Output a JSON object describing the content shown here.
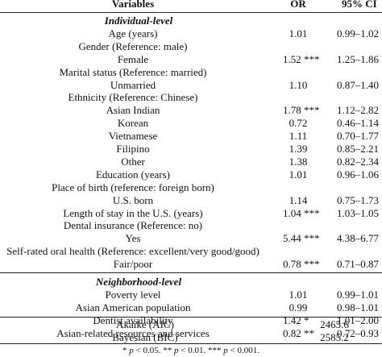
{
  "header": {
    "variables": "Variables",
    "or": "OR",
    "ci": "95% CI"
  },
  "sections": [
    {
      "title": "Individual-level",
      "rows": [
        {
          "label": "Age (years)",
          "or": "1.01",
          "ci": "0.99–1.02"
        },
        {
          "label": "Gender (Reference: male)",
          "or": "",
          "ci": ""
        },
        {
          "label": "Female",
          "or": "1.52 ***",
          "ci": "1.25–1.86"
        },
        {
          "label": "Marital status (Reference: married)",
          "or": "",
          "ci": ""
        },
        {
          "label": "Unmarried",
          "or": "1.10",
          "ci": "0.87–1.40"
        },
        {
          "label": "Ethnicity (Reference: Chinese)",
          "or": "",
          "ci": ""
        },
        {
          "label": "Asian Indian",
          "or": "1.78 ***",
          "ci": "1.12–2.82"
        },
        {
          "label": "Korean",
          "or": "0.72",
          "ci": "0.46–1.14"
        },
        {
          "label": "Vietnamese",
          "or": "1.11",
          "ci": "0.70–1.77"
        },
        {
          "label": "Filipino",
          "or": "1.39",
          "ci": "0.85–2.21"
        },
        {
          "label": "Other",
          "or": "1.38",
          "ci": "0.82–2.34"
        },
        {
          "label": "Education (years)",
          "or": "1.01",
          "ci": "0.96–1.06"
        },
        {
          "label": "Place of birth (reference: foreign born)",
          "or": "",
          "ci": ""
        },
        {
          "label": "U.S. born",
          "or": "1.14",
          "ci": "0.75–1.73"
        },
        {
          "label": "Length of stay in the U.S. (years)",
          "or": "1.04 ***",
          "ci": "1.03–1.05"
        },
        {
          "label": "Dental insurance (Reference: no)",
          "or": "",
          "ci": ""
        },
        {
          "label": "Yes",
          "or": "5.44 ***",
          "ci": "4.38–6.77"
        },
        {
          "label": "Self-rated oral health (Reference: excellent/very good/good)",
          "or": "",
          "ci": ""
        },
        {
          "label": "Fair/poor",
          "or": "0.78 ***",
          "ci": "0.71–0.87"
        }
      ]
    },
    {
      "title": "Neighborhood-level",
      "rows": [
        {
          "label": "Poverty level",
          "or": "1.01",
          "ci": "0.99–1.01"
        },
        {
          "label": "Asian American population",
          "or": "0.99",
          "ci": "0.98–1.01"
        },
        {
          "label": "Dentist availability",
          "or": "1.42 *",
          "ci": "1.01–2.00"
        },
        {
          "label": "Asian-related resources and services",
          "or": "0.82 **",
          "ci": "0.72–0.93"
        }
      ]
    }
  ],
  "fit": [
    {
      "label": "Akaike (AIC)",
      "value": "2465.6"
    },
    {
      "label": "Bayesian (BIC)",
      "value": "2585.2"
    }
  ],
  "footnote": {
    "p1": "p",
    "t1": " < 0.05. ** ",
    "p2": "p",
    "t2": " < 0.01. *** ",
    "p3": "p",
    "t3": " < 0.001.",
    "star": "* "
  }
}
